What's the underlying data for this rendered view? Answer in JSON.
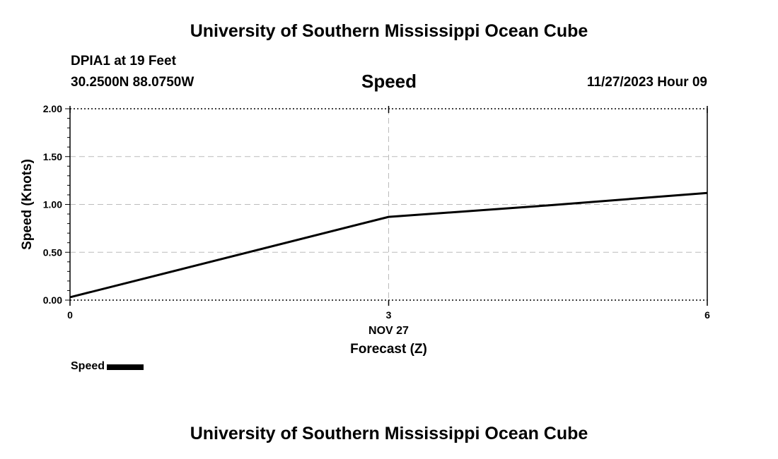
{
  "header": {
    "title": "University of Southern Mississippi Ocean Cube",
    "station": "DPIA1 at 19 Feet",
    "coordinates": "30.2500N  88.0750W",
    "timestamp": "11/27/2023 Hour 09"
  },
  "footer": {
    "title": "University of Southern Mississippi Ocean Cube"
  },
  "legend": {
    "label": "Speed",
    "color": "#000000"
  },
  "chart_data": {
    "type": "line",
    "title": "Speed",
    "ylabel": "Speed (Knots)",
    "xlabel": "Forecast (Z)",
    "x_date_label": "NOV 27",
    "x_ticks": [
      "0",
      "3",
      "6"
    ],
    "y_ticks": [
      "0.00",
      "0.50",
      "1.00",
      "1.50",
      "2.00"
    ],
    "xlim": [
      0,
      6
    ],
    "ylim": [
      0,
      2
    ],
    "grid": true,
    "legend_position": "bottom-left",
    "series": [
      {
        "name": "Speed",
        "color": "#000000",
        "x": [
          0,
          3,
          4.5,
          6
        ],
        "y": [
          0.03,
          0.87,
          0.99,
          1.12
        ]
      }
    ]
  }
}
